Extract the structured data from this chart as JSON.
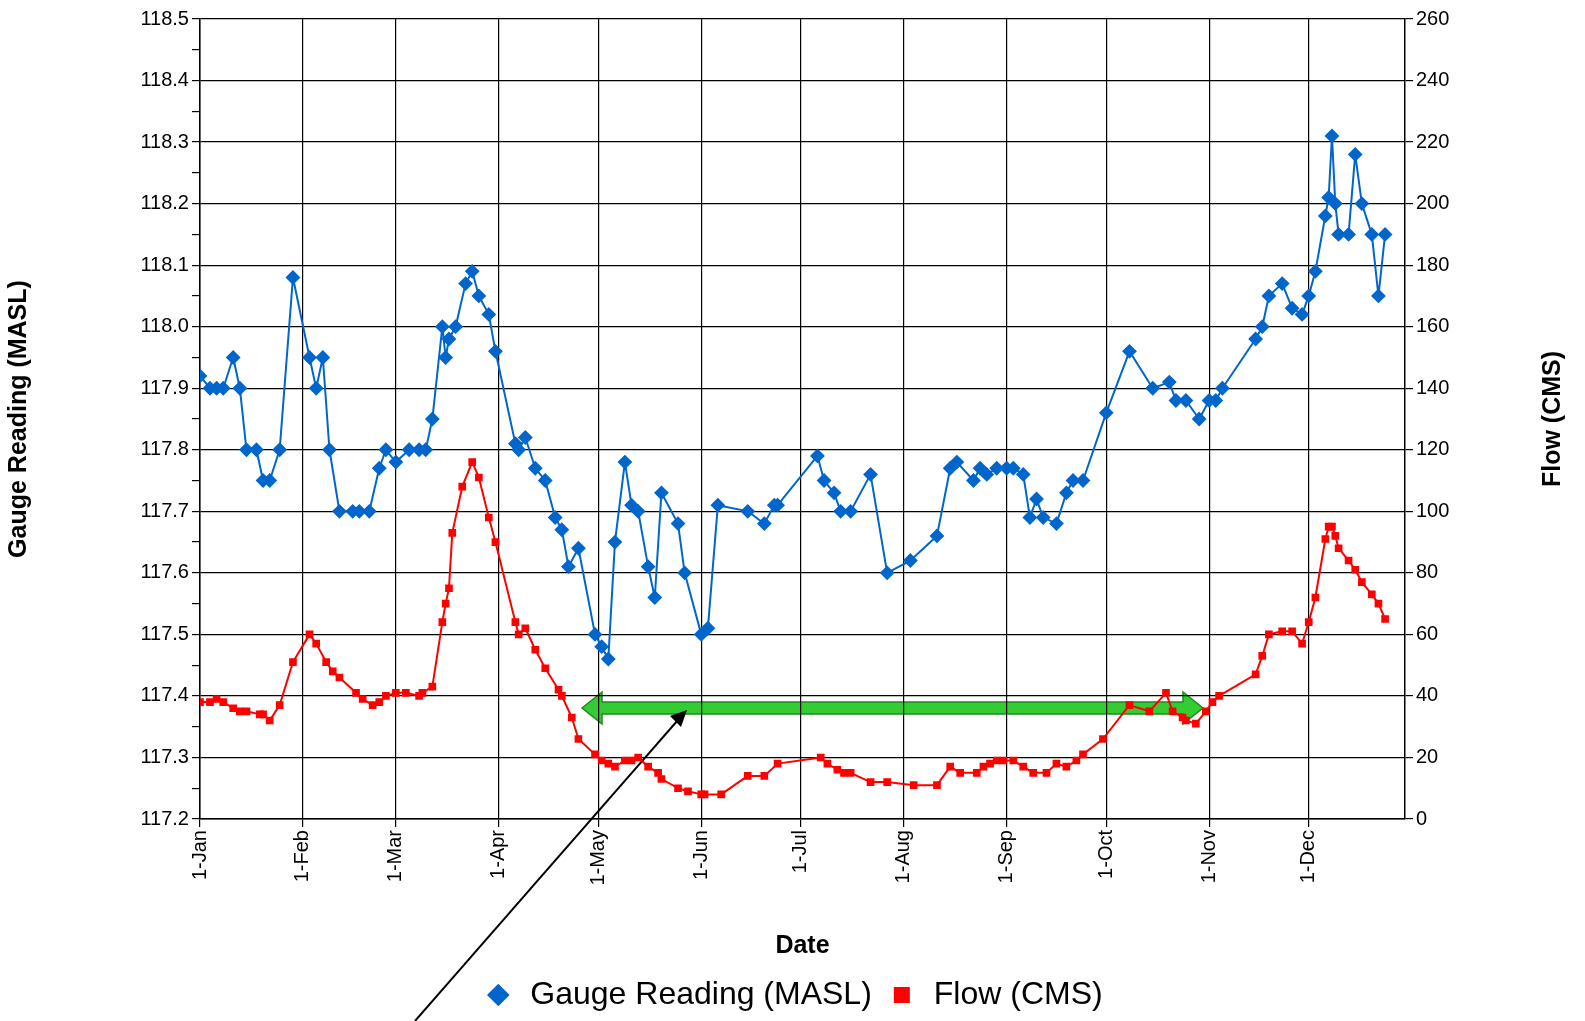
{
  "chart_data": {
    "type": "line",
    "xlabel": "Date",
    "ylabel": "Gauge Reading (MASL)",
    "y2label": "Flow (CMS)",
    "xlim": [
      "--01-01",
      "--12-30"
    ],
    "xticks": [
      {
        "value": "--01-01",
        "label": "1-Jan"
      },
      {
        "value": "--02-01",
        "label": "1-Feb"
      },
      {
        "value": "--03-01",
        "label": "1-Mar"
      },
      {
        "value": "--04-01",
        "label": "1-Apr"
      },
      {
        "value": "--05-01",
        "label": "1-May"
      },
      {
        "value": "--06-01",
        "label": "1-Jun"
      },
      {
        "value": "--07-01",
        "label": "1-Jul"
      },
      {
        "value": "--08-01",
        "label": "1-Aug"
      },
      {
        "value": "--09-01",
        "label": "1-Sep"
      },
      {
        "value": "--10-01",
        "label": "1-Oct"
      },
      {
        "value": "--11-01",
        "label": "1-Nov"
      },
      {
        "value": "--12-01",
        "label": "1-Dec"
      }
    ],
    "ylim": [
      117.2,
      118.5
    ],
    "yticks": [
      {
        "value": 117.2,
        "label": "117.2"
      },
      {
        "value": 117.25,
        "label": null
      },
      {
        "value": 117.3,
        "label": "117.3"
      },
      {
        "value": 117.35,
        "label": null
      },
      {
        "value": 117.4,
        "label": "117.4"
      },
      {
        "value": 117.45,
        "label": null
      },
      {
        "value": 117.5,
        "label": "117.5"
      },
      {
        "value": 117.55,
        "label": null
      },
      {
        "value": 117.6,
        "label": "117.6"
      },
      {
        "value": 117.65,
        "label": null
      },
      {
        "value": 117.7,
        "label": "117.7"
      },
      {
        "value": 117.75,
        "label": null
      },
      {
        "value": 117.8,
        "label": "117.8"
      },
      {
        "value": 117.85,
        "label": null
      },
      {
        "value": 117.9,
        "label": "117.9"
      },
      {
        "value": 117.95,
        "label": null
      },
      {
        "value": 118.0,
        "label": "118.0"
      },
      {
        "value": 118.05,
        "label": null
      },
      {
        "value": 118.1,
        "label": "118.1"
      },
      {
        "value": 118.15,
        "label": null
      },
      {
        "value": 118.2,
        "label": "118.2"
      },
      {
        "value": 118.25,
        "label": null
      },
      {
        "value": 118.3,
        "label": "118.3"
      },
      {
        "value": 118.35,
        "label": null
      },
      {
        "value": 118.4,
        "label": "118.4"
      },
      {
        "value": 118.45,
        "label": null
      },
      {
        "value": 118.5,
        "label": "118.5"
      }
    ],
    "y2lim": [
      0,
      260
    ],
    "y2ticks": [
      0,
      20,
      40,
      60,
      80,
      100,
      120,
      140,
      160,
      180,
      200,
      220,
      240,
      260
    ],
    "grid": true,
    "legend": "bottom",
    "line_style": "solid",
    "series": [
      {
        "name": "Gauge Reading (MASL)",
        "color": "#0066cc",
        "marker": "diamond",
        "x": [
          "--01-01",
          "--01-04",
          "--01-06",
          "--01-08",
          "--01-11",
          "--01-13",
          "--01-15",
          "--01-18",
          "--01-20",
          "--01-22",
          "--01-25",
          "--01-29",
          "--02-03",
          "--02-05",
          "--02-07",
          "--02-09",
          "--02-12",
          "--02-16",
          "--02-18",
          "--02-21",
          "--02-24",
          "--02-26",
          "--03-01",
          "--03-05",
          "--03-08",
          "--03-10",
          "--03-12",
          "--03-15",
          "--03-16",
          "--03-17",
          "--03-19",
          "--03-22",
          "--03-24",
          "--03-26",
          "--03-29",
          "--03-31",
          "--04-06",
          "--04-07",
          "--04-09",
          "--04-12",
          "--04-15",
          "--04-18",
          "--04-20",
          "--04-22",
          "--04-25",
          "--04-30",
          "--05-02",
          "--05-04",
          "--05-06",
          "--05-09",
          "--05-11",
          "--05-13",
          "--05-16",
          "--05-18",
          "--05-20",
          "--05-25",
          "--05-27",
          "--06-01",
          "--06-03",
          "--06-06",
          "--06-15",
          "--06-20",
          "--06-23",
          "--06-24",
          "--07-06",
          "--07-08",
          "--07-11",
          "--07-13",
          "--07-16",
          "--07-22",
          "--07-27",
          "--08-03",
          "--08-11",
          "--08-15",
          "--08-17",
          "--08-22",
          "--08-24",
          "--08-26",
          "--08-29",
          "--09-01",
          "--09-03",
          "--09-06",
          "--09-08",
          "--09-10",
          "--09-12",
          "--09-16",
          "--09-19",
          "--09-21",
          "--09-24",
          "--10-01",
          "--10-08",
          "--10-15",
          "--10-20",
          "--10-22",
          "--10-25",
          "--10-29",
          "--11-01",
          "--11-03",
          "--11-05",
          "--11-15",
          "--11-17",
          "--11-19",
          "--11-23",
          "--11-26",
          "--11-29",
          "--12-01",
          "--12-03",
          "--12-06",
          "--12-07",
          "--12-08",
          "--12-09",
          "--12-10",
          "--12-13",
          "--12-15",
          "--12-17",
          "--12-20",
          "--12-22",
          "--12-24"
        ],
        "values": [
          117.92,
          117.9,
          117.9,
          117.9,
          117.95,
          117.9,
          117.8,
          117.8,
          117.75,
          117.75,
          117.8,
          118.08,
          117.95,
          117.9,
          117.95,
          117.8,
          117.7,
          117.7,
          117.7,
          117.7,
          117.77,
          117.8,
          117.78,
          117.8,
          117.8,
          117.8,
          117.85,
          118.0,
          117.95,
          117.98,
          118.0,
          118.07,
          118.09,
          118.05,
          118.02,
          117.96,
          117.81,
          117.8,
          117.82,
          117.77,
          117.75,
          117.69,
          117.67,
          117.61,
          117.64,
          117.5,
          117.48,
          117.46,
          117.65,
          117.78,
          117.71,
          117.7,
          117.61,
          117.56,
          117.73,
          117.68,
          117.6,
          117.5,
          117.51,
          117.71,
          117.7,
          117.68,
          117.71,
          117.71,
          117.79,
          117.75,
          117.73,
          117.7,
          117.7,
          117.76,
          117.6,
          117.62,
          117.66,
          117.77,
          117.78,
          117.75,
          117.77,
          117.76,
          117.77,
          117.77,
          117.77,
          117.76,
          117.69,
          117.72,
          117.69,
          117.68,
          117.73,
          117.75,
          117.75,
          117.86,
          117.96,
          117.9,
          117.91,
          117.88,
          117.88,
          117.85,
          117.88,
          117.88,
          117.9,
          117.98,
          118.0,
          118.05,
          118.07,
          118.03,
          118.02,
          118.05,
          118.09,
          118.18,
          118.21,
          118.31,
          118.2,
          118.15,
          118.15,
          118.28,
          118.2,
          118.15,
          118.05,
          118.15
        ]
      },
      {
        "name": "Flow (CMS)",
        "color": "#ff0000",
        "marker": "square",
        "axis": "y2",
        "x": [
          "--01-01",
          "--01-04",
          "--01-06",
          "--01-08",
          "--01-11",
          "--01-13",
          "--01-15",
          "--01-19",
          "--01-20",
          "--01-22",
          "--01-25",
          "--01-29",
          "--02-03",
          "--02-05",
          "--02-08",
          "--02-10",
          "--02-12",
          "--02-17",
          "--02-19",
          "--02-22",
          "--02-24",
          "--02-26",
          "--03-01",
          "--03-04",
          "--03-08",
          "--03-09",
          "--03-12",
          "--03-15",
          "--03-16",
          "--03-17",
          "--03-18",
          "--03-21",
          "--03-24",
          "--03-26",
          "--03-29",
          "--03-31",
          "--04-06",
          "--04-07",
          "--04-09",
          "--04-12",
          "--04-15",
          "--04-19",
          "--04-20",
          "--04-23",
          "--04-25",
          "--04-30",
          "--05-02",
          "--05-04",
          "--05-06",
          "--05-09",
          "--05-11",
          "--05-13",
          "--05-16",
          "--05-19",
          "--05-20",
          "--05-25",
          "--05-28",
          "--06-01",
          "--06-02",
          "--06-07",
          "--06-15",
          "--06-20",
          "--06-24",
          "--07-07",
          "--07-09",
          "--07-12",
          "--07-14",
          "--07-16",
          "--07-22",
          "--07-27",
          "--08-04",
          "--08-11",
          "--08-15",
          "--08-18",
          "--08-23",
          "--08-25",
          "--08-27",
          "--08-29",
          "--08-31",
          "--09-03",
          "--09-06",
          "--09-09",
          "--09-13",
          "--09-16",
          "--09-19",
          "--09-22",
          "--09-24",
          "--09-30",
          "--10-08",
          "--10-14",
          "--10-19",
          "--10-21",
          "--10-24",
          "--10-25",
          "--10-28",
          "--10-31",
          "--11-02",
          "--11-04",
          "--11-15",
          "--11-17",
          "--11-19",
          "--11-23",
          "--11-26",
          "--11-29",
          "--12-01",
          "--12-03",
          "--12-06",
          "--12-07",
          "--12-08",
          "--12-09",
          "--12-10",
          "--12-13",
          "--12-15",
          "--12-17",
          "--12-20",
          "--12-22",
          "--12-24"
        ],
        "values": [
          38,
          38,
          39,
          38,
          36,
          35,
          35,
          34,
          34,
          32,
          37,
          51,
          60,
          57,
          51,
          48,
          46,
          41,
          39,
          37,
          38,
          40,
          41,
          41,
          40,
          41,
          43,
          64,
          70,
          75,
          93,
          108,
          116,
          111,
          98,
          90,
          64,
          60,
          62,
          55,
          49,
          42,
          40,
          33,
          26,
          21,
          19,
          18,
          17,
          19,
          19,
          20,
          17,
          15,
          13,
          10,
          9,
          8,
          8,
          8,
          14,
          14,
          18,
          20,
          18,
          16,
          15,
          15,
          12,
          12,
          11,
          11,
          17,
          15,
          15,
          17,
          18,
          19,
          19,
          19,
          17,
          15,
          15,
          18,
          17,
          19,
          21,
          26,
          37,
          35,
          41,
          35,
          33,
          32,
          31,
          35,
          38,
          40,
          47,
          53,
          60,
          61,
          61,
          57,
          64,
          72,
          91,
          95,
          95,
          92,
          88,
          84,
          81,
          77,
          73,
          70,
          65
        ]
      }
    ]
  }
}
